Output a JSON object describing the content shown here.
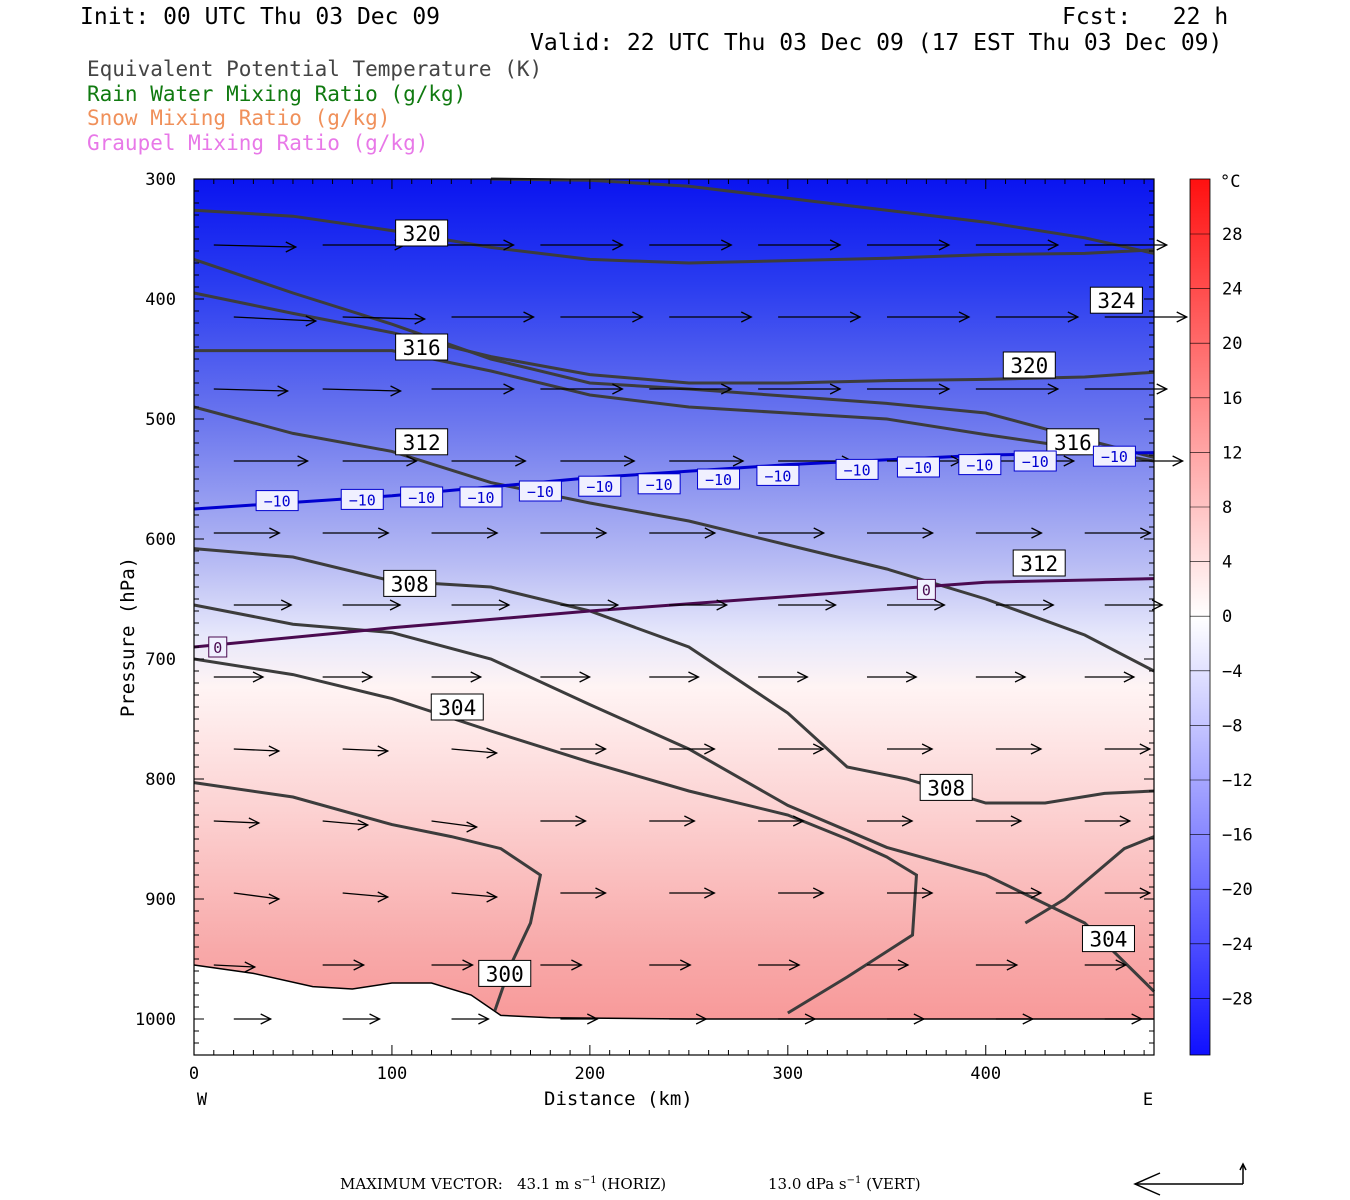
{
  "header": {
    "init": "Init: 00 UTC Thu 03 Dec 09",
    "fcst": "Fcst:   22 h",
    "valid": "Valid: 22 UTC Thu 03 Dec 09 (17 EST Thu 03 Dec 09)"
  },
  "variables": [
    {
      "label": "Equivalent Potential Temperature (K)",
      "color": "#444444"
    },
    {
      "label": "Rain Water Mixing Ratio (g/kg)",
      "color": "#107a10"
    },
    {
      "label": "Snow Mixing Ratio (g/kg)",
      "color": "#f0905a"
    },
    {
      "label": "Graupel Mixing Ratio (g/kg)",
      "color": "#e878e8"
    }
  ],
  "chart_data": {
    "type": "cross-section",
    "xlabel": "Distance (km)",
    "ylabel": "Pressure (hPa)",
    "xlim": [
      0,
      485
    ],
    "ylim": [
      1030,
      300
    ],
    "x_ticks": [
      0,
      100,
      200,
      300,
      400
    ],
    "y_ticks": [
      300,
      400,
      500,
      600,
      700,
      800,
      900,
      1000
    ],
    "x_end_labels": {
      "left": "W",
      "right": "E"
    },
    "colorbar": {
      "unit": "°C",
      "levels": [
        28,
        24,
        20,
        16,
        12,
        8,
        4,
        0,
        -4,
        -8,
        -12,
        -16,
        -20,
        -24,
        -28
      ],
      "tick_labels": [
        "28",
        "24",
        "20",
        "16",
        "12",
        "8",
        "4",
        "0",
        "−4",
        "−8",
        "−12",
        "−16",
        "−20",
        "−24",
        "−28"
      ]
    },
    "theta_e_contours": [
      {
        "value": "320",
        "points": [
          [
            0,
            326
          ],
          [
            50,
            331
          ],
          [
            100,
            343
          ],
          [
            150,
            357
          ],
          [
            200,
            367
          ],
          [
            250,
            370
          ],
          [
            300,
            368
          ],
          [
            350,
            366
          ],
          [
            400,
            363
          ],
          [
            450,
            362
          ],
          [
            485,
            359
          ]
        ]
      },
      {
        "value": "324",
        "points": [
          [
            0,
            395
          ],
          [
            50,
            412
          ],
          [
            100,
            428
          ],
          [
            150,
            448
          ],
          [
            200,
            463
          ],
          [
            250,
            470
          ],
          [
            300,
            470
          ],
          [
            350,
            468
          ],
          [
            400,
            467
          ],
          [
            450,
            465
          ],
          [
            485,
            461
          ]
        ]
      },
      {
        "value": "324b",
        "points": [
          [
            150,
            300
          ],
          [
            200,
            301
          ],
          [
            250,
            306
          ],
          [
            300,
            316
          ],
          [
            350,
            326
          ],
          [
            400,
            336
          ],
          [
            450,
            349
          ],
          [
            485,
            362
          ]
        ]
      },
      {
        "value": "316",
        "points": [
          [
            0,
            367
          ],
          [
            50,
            395
          ],
          [
            100,
            421
          ],
          [
            150,
            450
          ],
          [
            200,
            470
          ],
          [
            250,
            475
          ],
          [
            300,
            481
          ],
          [
            350,
            487
          ],
          [
            400,
            495
          ],
          [
            450,
            517
          ],
          [
            485,
            532
          ]
        ]
      },
      {
        "value": "316b",
        "points": [
          [
            0,
            443
          ],
          [
            100,
            443
          ],
          [
            150,
            460
          ],
          [
            200,
            480
          ],
          [
            250,
            490
          ],
          [
            300,
            495
          ],
          [
            350,
            500
          ],
          [
            400,
            513
          ],
          [
            450,
            525
          ],
          [
            485,
            535
          ]
        ]
      },
      {
        "value": "312",
        "points": [
          [
            0,
            490
          ],
          [
            50,
            512
          ],
          [
            100,
            527
          ],
          [
            150,
            553
          ],
          [
            200,
            570
          ],
          [
            250,
            585
          ],
          [
            300,
            605
          ],
          [
            350,
            625
          ],
          [
            400,
            650
          ],
          [
            450,
            680
          ],
          [
            485,
            710
          ]
        ]
      },
      {
        "value": "312b",
        "points": [
          [
            0,
            655
          ],
          [
            50,
            671
          ],
          [
            100,
            678
          ],
          [
            150,
            700
          ],
          [
            200,
            738
          ],
          [
            250,
            775
          ],
          [
            300,
            822
          ],
          [
            350,
            857
          ],
          [
            400,
            880
          ],
          [
            450,
            920
          ],
          [
            485,
            977
          ]
        ]
      },
      {
        "value": "308",
        "points": [
          [
            0,
            608
          ],
          [
            50,
            615
          ],
          [
            100,
            635
          ],
          [
            150,
            640
          ],
          [
            200,
            660
          ],
          [
            250,
            690
          ],
          [
            300,
            745
          ],
          [
            330,
            790
          ],
          [
            360,
            800
          ],
          [
            400,
            820
          ],
          [
            430,
            820
          ],
          [
            460,
            812
          ],
          [
            485,
            810
          ]
        ]
      },
      {
        "value": "304",
        "points": [
          [
            0,
            700
          ],
          [
            50,
            713
          ],
          [
            100,
            733
          ],
          [
            150,
            760
          ],
          [
            200,
            786
          ],
          [
            250,
            810
          ],
          [
            300,
            830
          ],
          [
            330,
            850
          ],
          [
            350,
            865
          ],
          [
            365,
            880
          ],
          [
            363,
            930
          ],
          [
            330,
            965
          ],
          [
            300,
            995
          ]
        ]
      },
      {
        "value": "300",
        "points": [
          [
            0,
            803
          ],
          [
            50,
            815
          ],
          [
            100,
            838
          ],
          [
            130,
            848
          ],
          [
            155,
            858
          ],
          [
            175,
            880
          ],
          [
            170,
            920
          ],
          [
            160,
            955
          ],
          [
            152,
            993
          ]
        ]
      },
      {
        "value": "304b",
        "points": [
          [
            420,
            920
          ],
          [
            440,
            900
          ],
          [
            470,
            858
          ],
          [
            485,
            848
          ]
        ]
      }
    ],
    "isotherms": [
      {
        "value": "−10",
        "color": "#0000d0",
        "points": [
          [
            0,
            575
          ],
          [
            100,
            564
          ],
          [
            200,
            549
          ],
          [
            300,
            538
          ],
          [
            400,
            530
          ],
          [
            485,
            528
          ]
        ]
      },
      {
        "value": "0",
        "color": "#4a0a50",
        "points": [
          [
            0,
            690
          ],
          [
            100,
            674
          ],
          [
            200,
            660
          ],
          [
            300,
            648
          ],
          [
            400,
            636
          ],
          [
            485,
            633
          ]
        ]
      }
    ],
    "contour_labels_theta_e": [
      {
        "text": "320",
        "x": 115,
        "p": 345
      },
      {
        "text": "324",
        "x": 466,
        "p": 401
      },
      {
        "text": "316",
        "x": 115,
        "p": 440
      },
      {
        "text": "320",
        "x": 422,
        "p": 455
      },
      {
        "text": "312",
        "x": 115,
        "p": 519
      },
      {
        "text": "316",
        "x": 444,
        "p": 519
      },
      {
        "text": "308",
        "x": 109,
        "p": 637
      },
      {
        "text": "312",
        "x": 427,
        "p": 620
      },
      {
        "text": "304",
        "x": 133,
        "p": 740
      },
      {
        "text": "308",
        "x": 380,
        "p": 807
      },
      {
        "text": "300",
        "x": 157,
        "p": 962
      },
      {
        "text": "304",
        "x": 462,
        "p": 933
      }
    ],
    "contour_labels_temp": [
      {
        "text": "−10",
        "x": 42,
        "p": 568,
        "color": "#0000d0"
      },
      {
        "text": "−10",
        "x": 85,
        "p": 567,
        "color": "#0000d0"
      },
      {
        "text": "−10",
        "x": 115,
        "p": 565,
        "color": "#0000d0"
      },
      {
        "text": "−10",
        "x": 145,
        "p": 565,
        "color": "#0000d0"
      },
      {
        "text": "−10",
        "x": 175,
        "p": 560,
        "color": "#0000d0"
      },
      {
        "text": "−10",
        "x": 205,
        "p": 556,
        "color": "#0000d0"
      },
      {
        "text": "−10",
        "x": 235,
        "p": 554,
        "color": "#0000d0"
      },
      {
        "text": "−10",
        "x": 265,
        "p": 550,
        "color": "#0000d0"
      },
      {
        "text": "−10",
        "x": 295,
        "p": 547,
        "color": "#0000d0"
      },
      {
        "text": "−10",
        "x": 335,
        "p": 542,
        "color": "#0000d0"
      },
      {
        "text": "−10",
        "x": 366,
        "p": 540,
        "color": "#0000d0"
      },
      {
        "text": "−10",
        "x": 397,
        "p": 538,
        "color": "#0000d0"
      },
      {
        "text": "−10",
        "x": 425,
        "p": 535,
        "color": "#0000d0"
      },
      {
        "text": "−10",
        "x": 465,
        "p": 531,
        "color": "#0000d0"
      },
      {
        "text": "0",
        "x": 12,
        "p": 690,
        "color": "#4a0a50"
      },
      {
        "text": "0",
        "x": 370,
        "p": 642,
        "color": "#4a0a50"
      }
    ],
    "wind_vectors": {
      "x_cols": [
        10,
        65,
        120,
        175,
        230,
        285,
        340,
        395,
        450
      ],
      "rows": [
        355,
        415,
        475,
        535,
        595,
        655,
        715,
        775,
        835,
        895,
        955,
        1000
      ],
      "u": [
        [
          1,
          1,
          1,
          1,
          1,
          1,
          1,
          1,
          1
        ],
        [
          1,
          1,
          1,
          1,
          1,
          1,
          1,
          1,
          1
        ],
        [
          0.9,
          0.95,
          1,
          1,
          1,
          1,
          1,
          1,
          1
        ],
        [
          0.9,
          0.9,
          0.9,
          0.9,
          0.9,
          0.9,
          0.9,
          0.95,
          0.95
        ],
        [
          0.8,
          0.8,
          0.8,
          0.8,
          0.8,
          0.8,
          0.8,
          0.8,
          0.8
        ],
        [
          0.7,
          0.7,
          0.7,
          0.7,
          0.7,
          0.7,
          0.7,
          0.7,
          0.7
        ],
        [
          0.6,
          0.6,
          0.6,
          0.6,
          0.6,
          0.6,
          0.6,
          0.6,
          0.6
        ],
        [
          0.55,
          0.55,
          0.55,
          0.55,
          0.55,
          0.55,
          0.55,
          0.55,
          0.55
        ],
        [
          0.55,
          0.55,
          0.55,
          0.55,
          0.55,
          0.55,
          0.55,
          0.55,
          0.55
        ],
        [
          0.55,
          0.55,
          0.55,
          0.55,
          0.55,
          0.55,
          0.55,
          0.55,
          0.55
        ],
        [
          0.5,
          0.5,
          0.5,
          0.5,
          0.5,
          0.5,
          0.5,
          0.5,
          0.5
        ],
        [
          0.45,
          0.45,
          0.45,
          0.45,
          0.45,
          0.45,
          0.45,
          0.45,
          0.45
        ]
      ],
      "w": [
        [
          0.05,
          0,
          0,
          0,
          0,
          0,
          0,
          0,
          0
        ],
        [
          0.1,
          0.05,
          0,
          0,
          0,
          0,
          0,
          0,
          0
        ],
        [
          0.05,
          0.05,
          0,
          0,
          0,
          0,
          0,
          0,
          0
        ],
        [
          0,
          0,
          0,
          0,
          0,
          0,
          0,
          0,
          0
        ],
        [
          0,
          0,
          0,
          0,
          0,
          0,
          0,
          0,
          0
        ],
        [
          0,
          0,
          0,
          0,
          0,
          0,
          0,
          0,
          0
        ],
        [
          0,
          0,
          0,
          0,
          0,
          0,
          0,
          0,
          0
        ],
        [
          0.05,
          0.05,
          0.1,
          0,
          0,
          0,
          0,
          0,
          0
        ],
        [
          0.05,
          0.1,
          0.15,
          0,
          0,
          0,
          0,
          0,
          0
        ],
        [
          0.15,
          0.1,
          0.1,
          0,
          0,
          0,
          0,
          0,
          0
        ],
        [
          0.05,
          0,
          0,
          0,
          0,
          0,
          0,
          0,
          0
        ],
        [
          0,
          0,
          0,
          0,
          0,
          0,
          0,
          0,
          0
        ]
      ]
    },
    "surface": [
      [
        0,
        955
      ],
      [
        30,
        962
      ],
      [
        60,
        973
      ],
      [
        80,
        975
      ],
      [
        100,
        970
      ],
      [
        120,
        970
      ],
      [
        140,
        980
      ],
      [
        155,
        997
      ],
      [
        180,
        999
      ],
      [
        250,
        1000
      ],
      [
        300,
        1000
      ],
      [
        485,
        1000
      ]
    ]
  },
  "footer": {
    "max_vector_label": "MAXIMUM VECTOR:",
    "horiz_value": "43.1 m s",
    "horiz_unit": "(HORIZ)",
    "vert_value": "13.0 dPa s",
    "vert_unit": "(VERT)",
    "exponent": "−1"
  }
}
